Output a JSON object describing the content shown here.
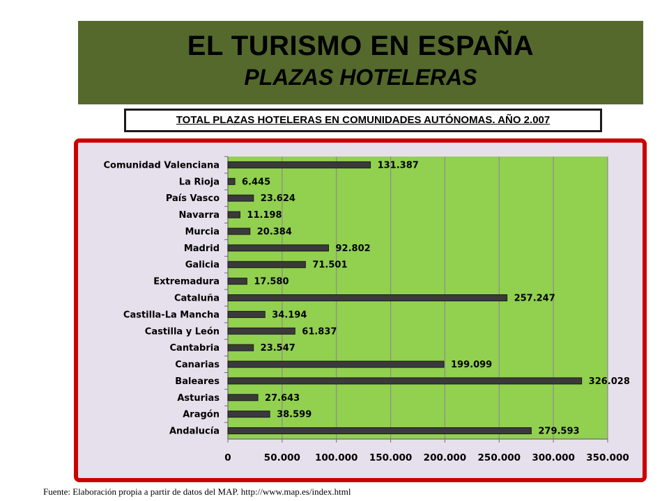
{
  "header": {
    "title": "EL TURISMO EN ESPAÑA",
    "subtitle": "PLAZAS HOTELERAS"
  },
  "chart_heading": "TOTAL PLAZAS HOTELERAS EN COMUNIDADES AUTÓNOMAS. AÑO 2.007",
  "source": "Fuente: Elaboración propia a partir de datos del MAP. http://www.map.es/index.html",
  "colors": {
    "header_band": "#55692d",
    "plot_area": "#92d050",
    "bars": "#3a3a3a",
    "frame_border": "#cc0000",
    "frame_background": "#e6e0ec"
  },
  "chart_data": {
    "type": "bar",
    "orientation": "horizontal",
    "categories": [
      "Comunidad Valenciana",
      "La Rioja",
      "País Vasco",
      "Navarra",
      "Murcia",
      "Madrid",
      "Galicia",
      "Extremadura",
      "Cataluña",
      "Castilla-La Mancha",
      "Castilla y León",
      "Cantabria",
      "Canarias",
      "Baleares",
      "Asturias",
      "Aragón",
      "Andalucía"
    ],
    "values": [
      131387,
      6445,
      23624,
      11198,
      20384,
      92802,
      71501,
      17580,
      257247,
      34194,
      61837,
      23547,
      199099,
      326028,
      27643,
      38599,
      279593
    ],
    "value_labels": [
      "131.387",
      "6.445",
      "23.624",
      "11.198",
      "20.384",
      "92.802",
      "71.501",
      "17.580",
      "257.247",
      "34.194",
      "61.837",
      "23.547",
      "199.099",
      "326.028",
      "27.643",
      "38.599",
      "279.593"
    ],
    "xlim": [
      0,
      350000
    ],
    "x_ticks": [
      0,
      50000,
      100000,
      150000,
      200000,
      250000,
      300000,
      350000
    ],
    "x_tick_labels": [
      "0",
      "50.000",
      "100.000",
      "150.000",
      "200.000",
      "250.000",
      "300.000",
      "350.000"
    ],
    "grid": "vertical",
    "legend": "none"
  }
}
